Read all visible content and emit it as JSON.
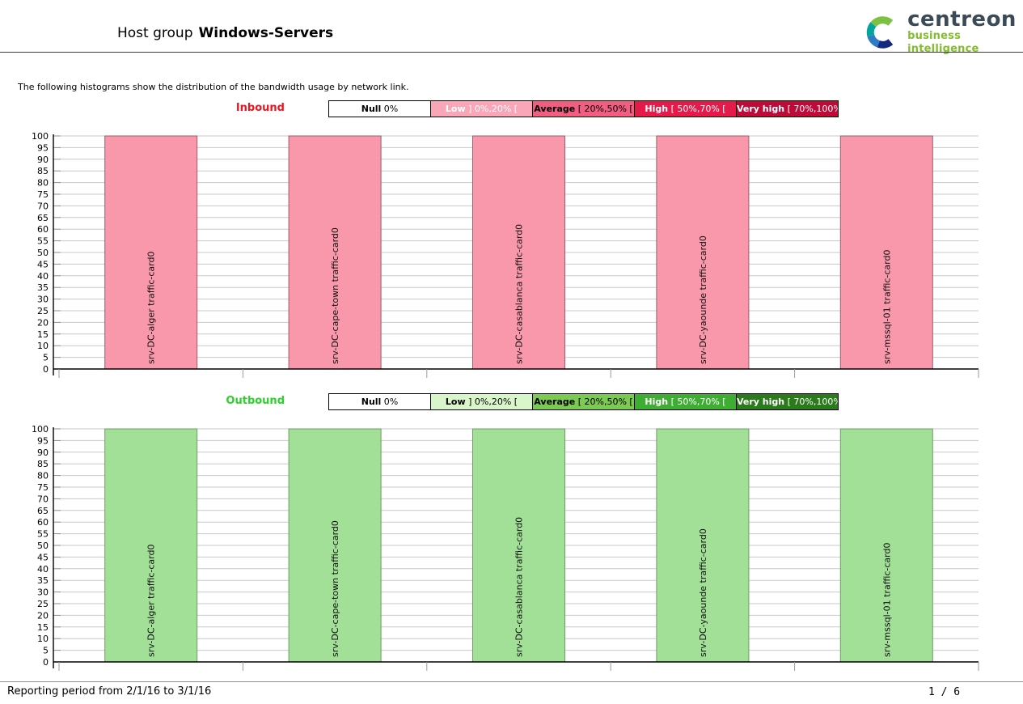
{
  "page": {
    "title_prefix": "Host group",
    "title_bold": "Windows-Servers",
    "intro": "The following histograms show the distribution of the bandwidth usage by network link.",
    "footer": {
      "reporting_period": "Reporting period from 2/1/16 to 3/1/16",
      "page_number": "1 / 6"
    }
  },
  "logo": {
    "icon": "centreon-c-icon",
    "wordmark": "centreon",
    "tagline": "business intelligence",
    "colors": {
      "green": "#7cc142",
      "teal": "#00a59c",
      "blue": "#2e7cc3",
      "navy": "#12297e",
      "word": "#3b4a57",
      "tagline": "#84bd2f"
    }
  },
  "chart_data": [
    {
      "type": "bar",
      "direction_label": "Inbound",
      "direction_color": "#ee1420",
      "legend_position": "top",
      "legend": [
        {
          "label": "Null",
          "range": "0%",
          "bg": "#ffffff",
          "fg": "#000000"
        },
        {
          "label": "Low",
          "range": "] 0%,20% [",
          "bg": "#f9a6b9",
          "fg": "#ffffff"
        },
        {
          "label": "Average",
          "range": "[ 20%,50% [",
          "bg": "#f25e82",
          "fg": "#000000"
        },
        {
          "label": "High",
          "range": "[ 50%,70% [",
          "bg": "#e41a4a",
          "fg": "#ffffff"
        },
        {
          "label": "Very high",
          "range": "[ 70%,100% ]",
          "bg": "#be0a38",
          "fg": "#ffffff"
        }
      ],
      "categories": [
        "srv-DC-alger traffic-card0",
        "srv-DC-cape-town traffic-card0",
        "srv-DC-casablanca traffic-card0",
        "srv-DC-yaounde traffic-card0",
        "srv-mssql-01 traffic-card0"
      ],
      "values": [
        100,
        100,
        100,
        100,
        100
      ],
      "bar_fill": "#f998ab",
      "bar_stroke": "#9a5f6b",
      "ylim": [
        0,
        100
      ],
      "ytick_step": 5,
      "grid": true,
      "xlabel": "",
      "ylabel": ""
    },
    {
      "type": "bar",
      "direction_label": "Outbound",
      "direction_color": "#28d428",
      "legend_position": "top",
      "legend": [
        {
          "label": "Null",
          "range": "0%",
          "bg": "#ffffff",
          "fg": "#000000"
        },
        {
          "label": "Low",
          "range": "] 0%,20% [",
          "bg": "#d9f6cb",
          "fg": "#000000"
        },
        {
          "label": "Average",
          "range": "[ 20%,50% [",
          "bg": "#7cc953",
          "fg": "#000000"
        },
        {
          "label": "High",
          "range": "[ 50%,70% [",
          "bg": "#3fad33",
          "fg": "#ffffff"
        },
        {
          "label": "Very high",
          "range": "[ 70%,100% ]",
          "bg": "#2b7a1c",
          "fg": "#ffffff"
        }
      ],
      "categories": [
        "srv-DC-alger traffic-card0",
        "srv-DC-cape-town traffic-card0",
        "srv-DC-casablanca traffic-card0",
        "srv-DC-yaounde traffic-card0",
        "srv-mssql-01 traffic-card0"
      ],
      "values": [
        100,
        100,
        100,
        100,
        100
      ],
      "bar_fill": "#a2df97",
      "bar_stroke": "#6d9f64",
      "ylim": [
        0,
        100
      ],
      "ytick_step": 5,
      "grid": true,
      "xlabel": "",
      "ylabel": ""
    }
  ]
}
